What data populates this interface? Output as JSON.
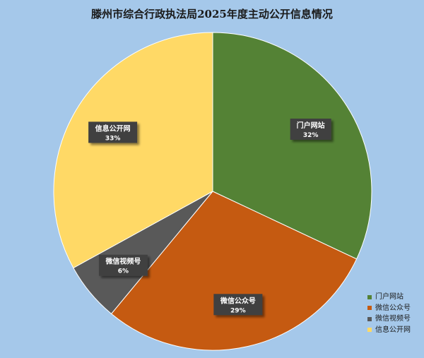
{
  "chart_data": {
    "type": "pie",
    "title": "滕州市综合行政执法局2025年度主动公开信息情况",
    "slices": [
      {
        "name": "门户网站",
        "value": 32,
        "label": "32%",
        "color": "#548235"
      },
      {
        "name": "微信公众号",
        "value": 29,
        "label": "29%",
        "color": "#c55a11"
      },
      {
        "name": "微信视频号",
        "value": 6,
        "label": "6%",
        "color": "#595959"
      },
      {
        "name": "信息公开网",
        "value": 33,
        "label": "33%",
        "color": "#ffd966"
      }
    ],
    "legend_position": "bottom-right"
  }
}
